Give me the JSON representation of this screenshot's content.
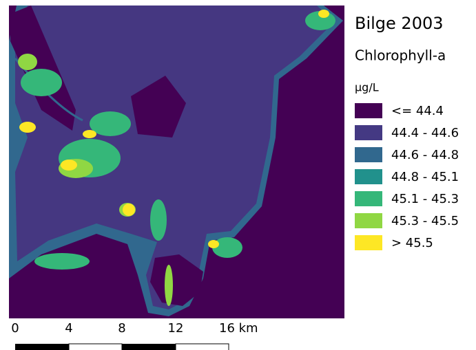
{
  "title": "Bilge 2003",
  "legend": {
    "title": "Chlorophyll-a",
    "unit": "µg/L",
    "items": [
      {
        "label": "<= 44.4",
        "color": "#440154"
      },
      {
        "label": "44.4 - 44.6",
        "color": "#443983"
      },
      {
        "label": "44.6 - 44.8",
        "color": "#31688e"
      },
      {
        "label": "44.8 - 45.1",
        "color": "#21918c"
      },
      {
        "label": "45.1 - 45.3",
        "color": "#35b779"
      },
      {
        "label": "45.3 - 45.5",
        "color": "#90d743"
      },
      {
        "label": "> 45.5",
        "color": "#fde725"
      }
    ]
  },
  "scale_bar": {
    "labels": [
      "0",
      "4",
      "8",
      "12",
      "16 km"
    ]
  }
}
